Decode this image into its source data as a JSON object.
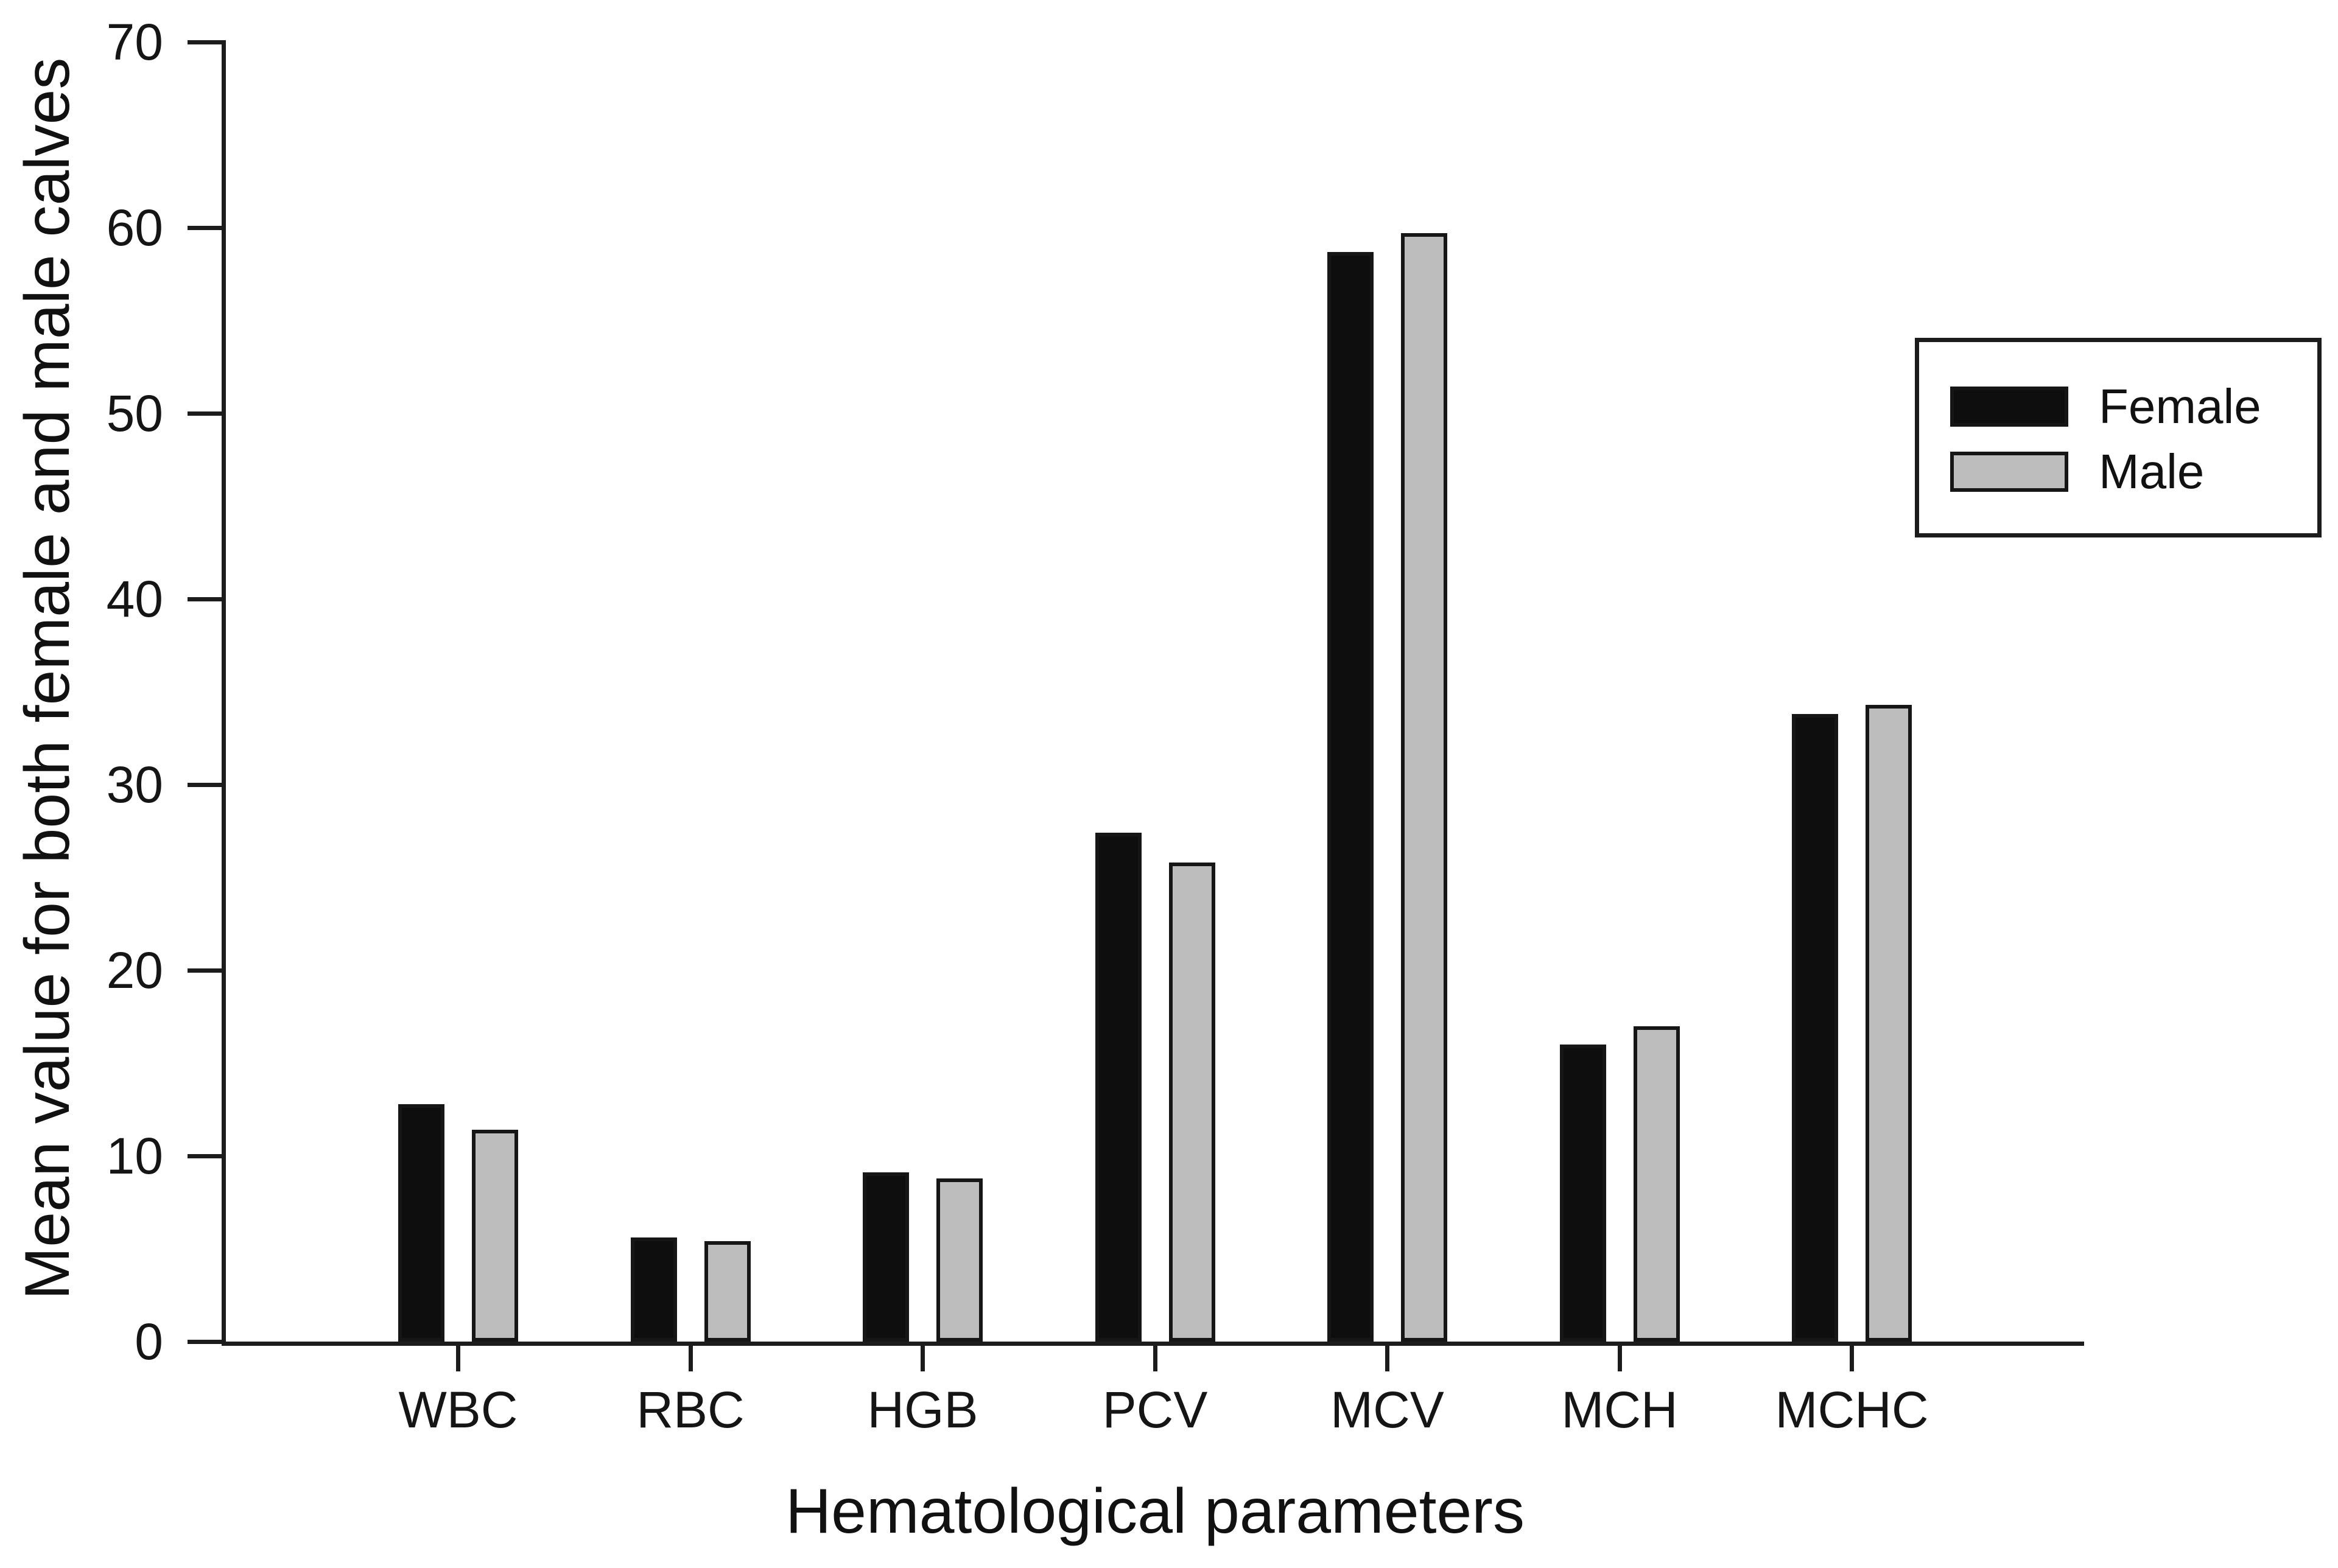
{
  "figure": {
    "background": "#ffffff",
    "text_color": "#111111",
    "axis_color": "#1c1c1c"
  },
  "chart_data": {
    "type": "bar",
    "title": "",
    "xlabel": "Hematological parameters",
    "ylabel": "Mean value for both female and male calves",
    "categories": [
      "WBC",
      "RBC",
      "HGB",
      "PCV",
      "MCV",
      "MCH",
      "MCHC"
    ],
    "series": [
      {
        "name": "Female",
        "color": "#0e0e0e",
        "values": [
          12.8,
          5.6,
          9.1,
          27.4,
          58.7,
          16.0,
          33.8
        ]
      },
      {
        "name": "Male",
        "color": "#bdbdbd",
        "values": [
          11.4,
          5.4,
          8.8,
          25.8,
          59.7,
          17.0,
          34.3
        ]
      }
    ],
    "ylim": [
      0,
      70
    ],
    "yticks": [
      0,
      10,
      20,
      30,
      40,
      50,
      60,
      70
    ],
    "grid": false,
    "legend_position": "upper right"
  }
}
